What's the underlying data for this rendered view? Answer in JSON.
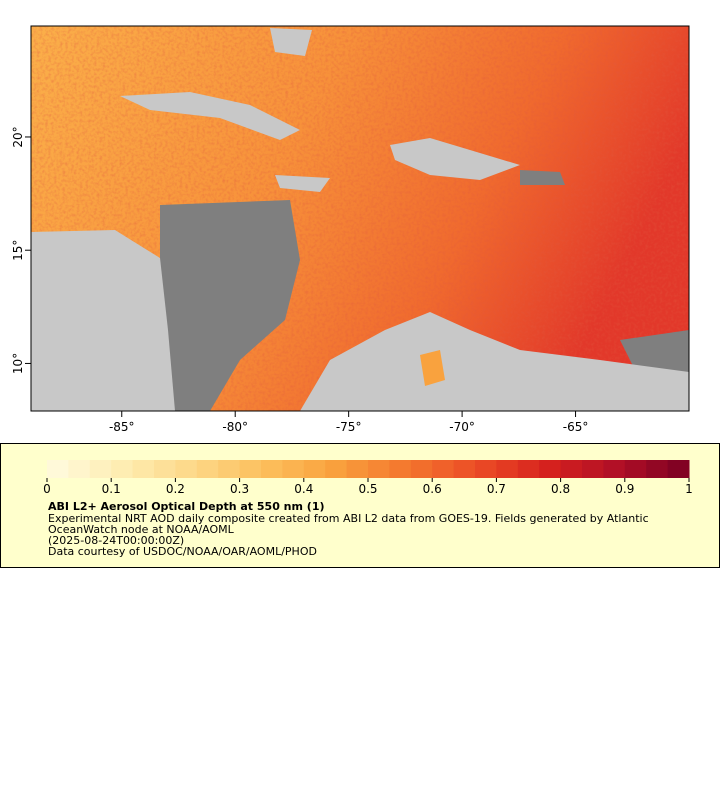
{
  "map": {
    "xlim": [
      -89,
      -60
    ],
    "ylim": [
      7.9,
      24.9
    ],
    "xticks": [
      {
        "value": -85,
        "label": "-85°"
      },
      {
        "value": -80,
        "label": "-80°"
      },
      {
        "value": -75,
        "label": "-75°"
      },
      {
        "value": -70,
        "label": "-70°"
      },
      {
        "value": -65,
        "label": "-65°"
      }
    ],
    "yticks": [
      {
        "value": 10,
        "label": "10°"
      },
      {
        "value": 15,
        "label": "15°"
      },
      {
        "value": 20,
        "label": "20°"
      }
    ]
  },
  "legend": {
    "title": "ABI L2+ Aerosol Optical Depth at 550 nm (1)",
    "lines": [
      "Experimental NRT AOD daily composite created from ABI L2 data from GOES-19. Fields generated by Atlantic",
      "OceanWatch node at NOAA/AOML",
      "(2025-08-24T00:00:00Z)",
      "Data courtesy of USDOC/NOAA/OAR/AOML/PHOD"
    ],
    "colorbar": {
      "range": [
        0,
        1
      ],
      "ticks": [
        0,
        0.1,
        0.2,
        0.3,
        0.4,
        0.5,
        0.6,
        0.7,
        0.8,
        0.9,
        1
      ],
      "colors": [
        "#fffbe0",
        "#feeeb4",
        "#fdd98a",
        "#fcc05e",
        "#f9a23e",
        "#f4782e",
        "#ec4e26",
        "#d7221e",
        "#b00f26",
        "#7a0022"
      ]
    }
  }
}
